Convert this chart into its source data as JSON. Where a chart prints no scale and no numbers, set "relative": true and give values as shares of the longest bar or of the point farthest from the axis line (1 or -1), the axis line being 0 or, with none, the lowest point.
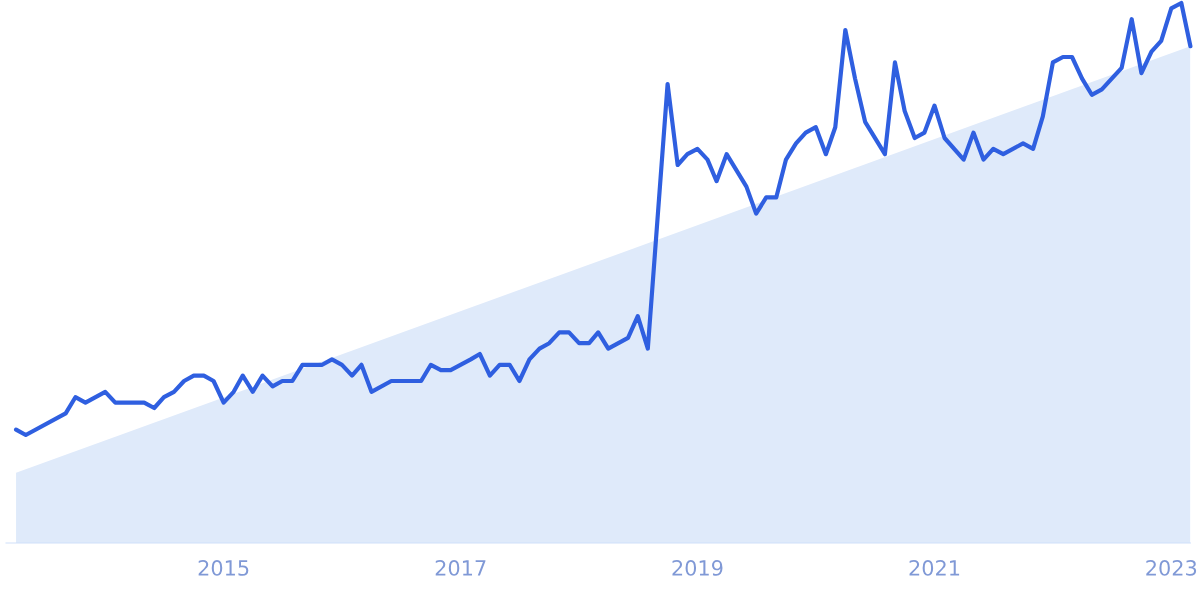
{
  "chart_data": {
    "type": "line",
    "relative": true,
    "xlim": [
      "2013-03",
      "2023-03"
    ],
    "xticks": [
      {
        "value": "2015-01",
        "label": "2015"
      },
      {
        "value": "2017-01",
        "label": "2017"
      },
      {
        "value": "2019-01",
        "label": "2019"
      },
      {
        "value": "2021-01",
        "label": "2021"
      },
      {
        "value": "2023-01",
        "label": "2023"
      }
    ],
    "series": [
      {
        "type": "area",
        "color": "#dfeafa",
        "x": [
          "2013-04",
          "2023-03"
        ],
        "values": [
          0.13,
          0.92
        ]
      },
      {
        "color": "#2f5fe0",
        "x": [
          "2013-04",
          "2013-05",
          "2013-09",
          "2013-10",
          "2013-11",
          "2014-01",
          "2014-02",
          "2014-05",
          "2014-06",
          "2014-07",
          "2014-08",
          "2014-09",
          "2014-10",
          "2014-11",
          "2014-12",
          "2015-01",
          "2015-02",
          "2015-03",
          "2015-04",
          "2015-05",
          "2015-06",
          "2015-07",
          "2015-08",
          "2015-09",
          "2015-11",
          "2015-12",
          "2016-01",
          "2016-02",
          "2016-03",
          "2016-04",
          "2016-06",
          "2016-09",
          "2016-10",
          "2016-11",
          "2016-12",
          "2017-02",
          "2017-03",
          "2017-04",
          "2017-05",
          "2017-06",
          "2017-07",
          "2017-08",
          "2017-09",
          "2017-10",
          "2017-11",
          "2017-12",
          "2018-01",
          "2018-02",
          "2018-03",
          "2018-04",
          "2018-06",
          "2018-07",
          "2018-08",
          "2018-10",
          "2018-11",
          "2018-12",
          "2019-01",
          "2019-02",
          "2019-03",
          "2019-04",
          "2019-06",
          "2019-07",
          "2019-08",
          "2019-09",
          "2019-10",
          "2019-11",
          "2019-12",
          "2020-01",
          "2020-02",
          "2020-03",
          "2020-04",
          "2020-05",
          "2020-06",
          "2020-08",
          "2020-09",
          "2020-10",
          "2020-11",
          "2020-12",
          "2021-01",
          "2021-02",
          "2021-04",
          "2021-05",
          "2021-06",
          "2021-07",
          "2021-08",
          "2021-10",
          "2021-11",
          "2021-12",
          "2022-01",
          "2022-02",
          "2022-03",
          "2022-04",
          "2022-05",
          "2022-06",
          "2022-08",
          "2022-09",
          "2022-10",
          "2022-11",
          "2022-12",
          "2023-01",
          "2023-02",
          "2023-03"
        ],
        "values": [
          0.21,
          0.2,
          0.24,
          0.27,
          0.26,
          0.28,
          0.26,
          0.26,
          0.25,
          0.27,
          0.28,
          0.3,
          0.31,
          0.31,
          0.3,
          0.26,
          0.28,
          0.31,
          0.28,
          0.31,
          0.29,
          0.3,
          0.3,
          0.33,
          0.33,
          0.34,
          0.33,
          0.31,
          0.33,
          0.28,
          0.3,
          0.3,
          0.33,
          0.32,
          0.32,
          0.34,
          0.35,
          0.31,
          0.33,
          0.33,
          0.3,
          0.34,
          0.36,
          0.37,
          0.39,
          0.39,
          0.37,
          0.37,
          0.39,
          0.36,
          0.38,
          0.42,
          0.36,
          0.85,
          0.7,
          0.72,
          0.73,
          0.71,
          0.67,
          0.72,
          0.66,
          0.61,
          0.64,
          0.64,
          0.71,
          0.74,
          0.76,
          0.77,
          0.72,
          0.77,
          0.95,
          0.86,
          0.78,
          0.72,
          0.89,
          0.8,
          0.75,
          0.76,
          0.81,
          0.75,
          0.71,
          0.76,
          0.71,
          0.73,
          0.72,
          0.74,
          0.73,
          0.79,
          0.89,
          0.9,
          0.9,
          0.86,
          0.83,
          0.84,
          0.88,
          0.97,
          0.87,
          0.91,
          0.93,
          0.99,
          1,
          0.92
        ]
      }
    ]
  }
}
